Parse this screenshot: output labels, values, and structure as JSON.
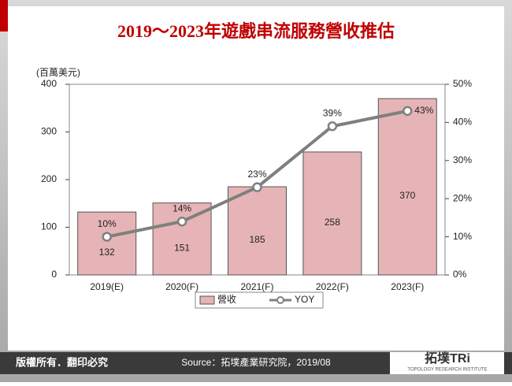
{
  "chart_data": {
    "type": "bar",
    "title": "2019～2023年遊戲串流服務營收推估",
    "y_label": "(百萬美元)",
    "categories": [
      "2019(E)",
      "2020(F)",
      "2021(F)",
      "2022(F)",
      "2023(F)"
    ],
    "series": [
      {
        "name": "營收",
        "type": "bar",
        "color": "#e6b4b6",
        "values": [
          132,
          151,
          185,
          258,
          370
        ]
      },
      {
        "name": "YOY",
        "type": "line",
        "axis": "y2",
        "color": "#7f7f7f",
        "values": [
          10,
          14,
          23,
          39,
          43
        ],
        "value_labels": [
          "10%",
          "14%",
          "23%",
          "39%",
          "43%"
        ]
      }
    ],
    "ylim": [
      0,
      400
    ],
    "yticks": [
      0,
      100,
      200,
      300,
      400
    ],
    "y2lim": [
      0,
      50
    ],
    "y2ticks": [
      {
        "value": 0,
        "label": "0%"
      },
      {
        "value": 10,
        "label": "10%"
      },
      {
        "value": 20,
        "label": "20%"
      },
      {
        "value": 30,
        "label": "30%"
      },
      {
        "value": 40,
        "label": "40%"
      },
      {
        "value": 50,
        "label": "50%"
      }
    ],
    "legend": "bottom"
  },
  "footer": {
    "copyright": "版權所有．翻印必究",
    "source": "Source：拓墣產業研究院，2019/08",
    "logo": "拓墣TRi",
    "logo_sub": "TOPOLOGY RESEARCH INSTITUTE"
  }
}
